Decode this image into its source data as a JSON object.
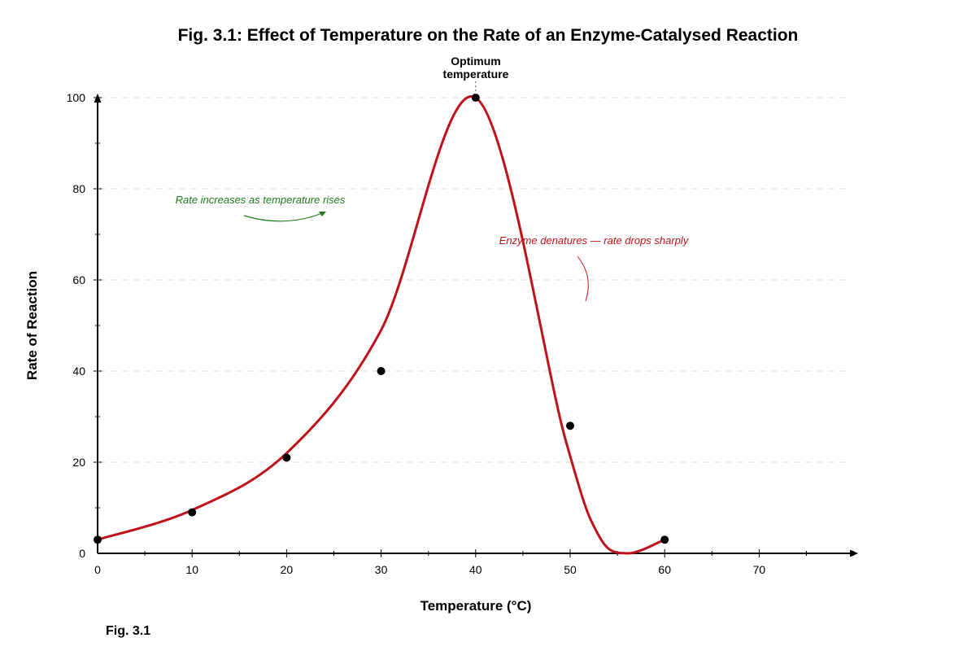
{
  "chart_data": {
    "type": "line",
    "title": "Fig. 3.1: Effect of Temperature on the Rate of an Enzyme-Catalysed Reaction",
    "xlabel": "Temperature (°C)",
    "ylabel": "Rate of Reaction",
    "xlim": [
      0,
      80
    ],
    "ylim": [
      0,
      100
    ],
    "x_ticks": [
      0,
      10,
      20,
      30,
      40,
      50,
      60,
      70
    ],
    "y_ticks": [
      0,
      20,
      40,
      60,
      80,
      100
    ],
    "grid": "horizontal dashed",
    "points": [
      {
        "x": 0,
        "y": 3
      },
      {
        "x": 10,
        "y": 9
      },
      {
        "x": 20,
        "y": 21
      },
      {
        "x": 30,
        "y": 40
      },
      {
        "x": 40,
        "y": 100
      },
      {
        "x": 50,
        "y": 28
      },
      {
        "x": 60,
        "y": 3
      }
    ],
    "curve": [
      {
        "x": 0,
        "y": 3
      },
      {
        "x": 10,
        "y": 9.5
      },
      {
        "x": 20,
        "y": 22
      },
      {
        "x": 30,
        "y": 49
      },
      {
        "x": 40,
        "y": 100
      },
      {
        "x": 49.5,
        "y": 25
      },
      {
        "x": 53,
        "y": 4
      },
      {
        "x": 56,
        "y": 0
      },
      {
        "x": 60,
        "y": 3
      }
    ],
    "annotations": {
      "peak_label_line1": "Optimum",
      "peak_label_line2": "temperature",
      "rise_note": "Rate increases as temperature rises",
      "fall_note": "Enzyme denatures — rate drops sharply"
    },
    "colors": {
      "curve": "#c0111a",
      "points": "#000000",
      "rise_note": "#1e7a1e",
      "fall_note": "#c0111a"
    }
  },
  "caption": "Fig. 3.1"
}
